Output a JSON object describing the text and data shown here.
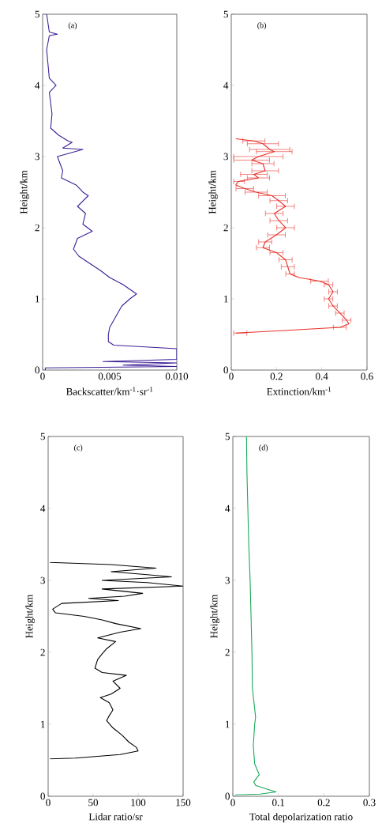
{
  "chart_data": [
    {
      "type": "line",
      "xlabel": "Backscatter/km$^{-1}$·sr$^{-1}$",
      "ylabel": "Height/km",
      "annotations": [
        "(a)"
      ],
      "xlim": [
        0,
        0.01
      ],
      "ylim": [
        0,
        5
      ],
      "xticks": [
        0,
        0.005,
        {
          "value": 0.01,
          "label": "0.010"
        }
      ],
      "yticks": [
        0,
        1,
        2,
        3,
        4,
        5
      ],
      "series": [
        {
          "color": "#3d1f96",
          "x": [
            0.0002,
            0.0002,
            0.01,
            0.006,
            0.01,
            0.0045,
            0.01,
            0.01,
            0.0053,
            0.0049,
            0.0049,
            0.005,
            0.0056,
            0.0059,
            0.0065,
            0.007,
            0.006,
            0.005,
            0.0043,
            0.0035,
            0.0027,
            0.0023,
            0.0026,
            0.0037,
            0.003,
            0.0032,
            0.0026,
            0.0034,
            0.003,
            0.0025,
            0.0014,
            0.0015,
            0.0011,
            0.003,
            0.0015,
            0.0022,
            0.0019,
            0.0012,
            0.0006,
            0.0007,
            0.0005,
            0.001,
            0.0005,
            0.0003,
            0.0005,
            0.0011,
            0.0005,
            0.0003
          ],
          "values": [
            0.0,
            0.03,
            0.05,
            0.07,
            0.1,
            0.12,
            0.15,
            0.3,
            0.35,
            0.4,
            0.5,
            0.6,
            0.8,
            0.9,
            1.0,
            1.07,
            1.2,
            1.3,
            1.4,
            1.5,
            1.6,
            1.7,
            1.85,
            1.95,
            2.05,
            2.2,
            2.3,
            2.45,
            2.5,
            2.6,
            2.7,
            2.8,
            3.0,
            3.1,
            3.12,
            3.2,
            3.22,
            3.3,
            3.4,
            3.6,
            3.9,
            4.0,
            4.1,
            4.5,
            4.7,
            4.72,
            4.75,
            5.0
          ]
        }
      ]
    },
    {
      "type": "line",
      "xlabel": "Extinction/km$^{-1}$",
      "ylabel": "Height/km",
      "annotations": [
        "(b)"
      ],
      "xlim": [
        0,
        0.6
      ],
      "ylim": [
        0,
        5
      ],
      "xticks": [
        0,
        0.2,
        0.4,
        0.6
      ],
      "yticks": [
        0,
        1,
        2,
        3,
        4,
        5
      ],
      "series": [
        {
          "color": "#e8302a",
          "x": [
            0.02,
            0.2,
            0.48,
            0.52,
            0.51,
            0.48,
            0.45,
            0.43,
            0.45,
            0.43,
            0.39,
            0.3,
            0.26,
            0.25,
            0.24,
            0.2,
            0.14,
            0.15,
            0.2,
            0.24,
            0.21,
            0.19,
            0.24,
            0.21,
            0.18,
            0.11,
            0.06,
            0.02,
            0.03,
            0.12,
            0.1,
            0.15,
            0.14,
            0.09,
            0.12,
            0.19,
            0.17,
            0.14,
            0.1,
            0.02
          ],
          "values": [
            0.52,
            0.55,
            0.6,
            0.65,
            0.7,
            0.8,
            0.9,
            1.0,
            1.1,
            1.2,
            1.25,
            1.3,
            1.35,
            1.45,
            1.55,
            1.65,
            1.72,
            1.8,
            1.9,
            2.0,
            2.1,
            2.2,
            2.3,
            2.38,
            2.45,
            2.5,
            2.55,
            2.6,
            2.65,
            2.7,
            2.75,
            2.8,
            2.9,
            2.95,
            3.0,
            3.07,
            3.1,
            3.18,
            3.22,
            3.25
          ],
          "xerrors": [
            [
              0.01,
              0.07
            ],
            null,
            0.03,
            null,
            0.02,
            0.02,
            0.02,
            0.02,
            0.02,
            0.02,
            0.04,
            null,
            0.02,
            0.03,
            0.03,
            0.03,
            0.03,
            0.03,
            0.04,
            0.04,
            0.04,
            0.04,
            0.04,
            0.04,
            0.06,
            0.05,
            0.04,
            null,
            [
              0.01,
              0.06
            ],
            0.05,
            0.06,
            0.06,
            0.05,
            0.08,
            0.11,
            0.08,
            0.09,
            0.07,
            0.05,
            null
          ]
        }
      ]
    },
    {
      "type": "line",
      "xlabel": "Lidar ratio/sr",
      "ylabel": "Height/km",
      "annotations": [
        "(c)"
      ],
      "xlim": [
        0,
        150
      ],
      "ylim": [
        0,
        5
      ],
      "xticks": [
        0,
        50,
        100,
        150
      ],
      "yticks": [
        0,
        1,
        2,
        3,
        4,
        5
      ],
      "series": [
        {
          "color": "#000000",
          "x": [
            2,
            30,
            80,
            100,
            98,
            90,
            82,
            72,
            65,
            67,
            72,
            68,
            58,
            70,
            80,
            72,
            87,
            60,
            52,
            55,
            60,
            65,
            75,
            55,
            80,
            103,
            75,
            60,
            40,
            8,
            5,
            15,
            78,
            45,
            85,
            105,
            60,
            150,
            110,
            60,
            137,
            110,
            70,
            120,
            70,
            2
          ],
          "values": [
            0.52,
            0.53,
            0.58,
            0.63,
            0.68,
            0.75,
            0.85,
            0.95,
            1.05,
            1.1,
            1.2,
            1.3,
            1.37,
            1.42,
            1.5,
            1.6,
            1.68,
            1.72,
            1.78,
            1.9,
            1.98,
            2.05,
            2.15,
            2.2,
            2.28,
            2.33,
            2.4,
            2.45,
            2.5,
            2.55,
            2.6,
            2.68,
            2.72,
            2.75,
            2.78,
            2.82,
            2.88,
            2.92,
            2.97,
            3.0,
            3.05,
            3.08,
            3.12,
            3.17,
            3.22,
            3.25
          ]
        }
      ]
    },
    {
      "type": "line",
      "xlabel": "Total depolarization ratio",
      "ylabel": "Height/km",
      "annotations": [
        "(d)"
      ],
      "xlim": [
        0,
        0.3
      ],
      "ylim": [
        0,
        5
      ],
      "xticks": [
        0,
        0.1,
        0.2,
        0.3
      ],
      "yticks": [
        0,
        1,
        2,
        3,
        4,
        5
      ],
      "series": [
        {
          "color": "#1aa85a",
          "x": [
            0.005,
            0.06,
            0.095,
            0.075,
            0.05,
            0.046,
            0.058,
            0.048,
            0.045,
            0.048,
            0.05,
            0.043,
            0.042,
            0.04,
            0.038,
            0.035,
            0.033,
            0.031,
            0.03
          ],
          "values": [
            0.02,
            0.03,
            0.06,
            0.1,
            0.15,
            0.2,
            0.3,
            0.45,
            0.7,
            1.0,
            1.1,
            1.5,
            2.0,
            2.5,
            3.0,
            3.5,
            4.0,
            4.5,
            5.0
          ]
        }
      ]
    }
  ]
}
